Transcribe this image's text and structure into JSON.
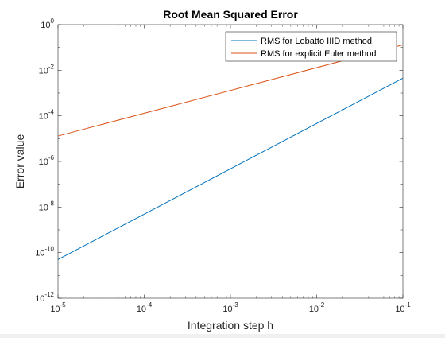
{
  "chart_data": {
    "type": "line",
    "title": "Root Mean Squared Error",
    "xlabel": "Integration step h",
    "ylabel": "Error value",
    "xscale": "log",
    "yscale": "log",
    "xlim": [
      1e-05,
      0.1
    ],
    "ylim": [
      1e-12,
      1
    ],
    "x_ticks": [
      {
        "value": 1e-05,
        "base": "10",
        "exp": "-5"
      },
      {
        "value": 0.0001,
        "base": "10",
        "exp": "-4"
      },
      {
        "value": 0.001,
        "base": "10",
        "exp": "-3"
      },
      {
        "value": 0.01,
        "base": "10",
        "exp": "-2"
      },
      {
        "value": 0.1,
        "base": "10",
        "exp": "-1"
      }
    ],
    "y_ticks": [
      {
        "value": 1e-12,
        "base": "10",
        "exp": "-12"
      },
      {
        "value": 1e-10,
        "base": "10",
        "exp": "-10"
      },
      {
        "value": 1e-08,
        "base": "10",
        "exp": "-8"
      },
      {
        "value": 1e-06,
        "base": "10",
        "exp": "-6"
      },
      {
        "value": 0.0001,
        "base": "10",
        "exp": "-4"
      },
      {
        "value": 0.01,
        "base": "10",
        "exp": "-2"
      },
      {
        "value": 1,
        "base": "10",
        "exp": "0"
      }
    ],
    "grid": false,
    "legend_position": "top-right",
    "series": [
      {
        "name": "RMS for Lobatto IIID method",
        "color": "#0072BD",
        "x": [
          1e-05,
          0.1
        ],
        "y": [
          5e-11,
          0.0045
        ]
      },
      {
        "name": "RMS for explicit Euler method",
        "color": "#D95319",
        "x": [
          1e-05,
          0.1
        ],
        "y": [
          1.3e-05,
          0.13
        ]
      }
    ]
  }
}
